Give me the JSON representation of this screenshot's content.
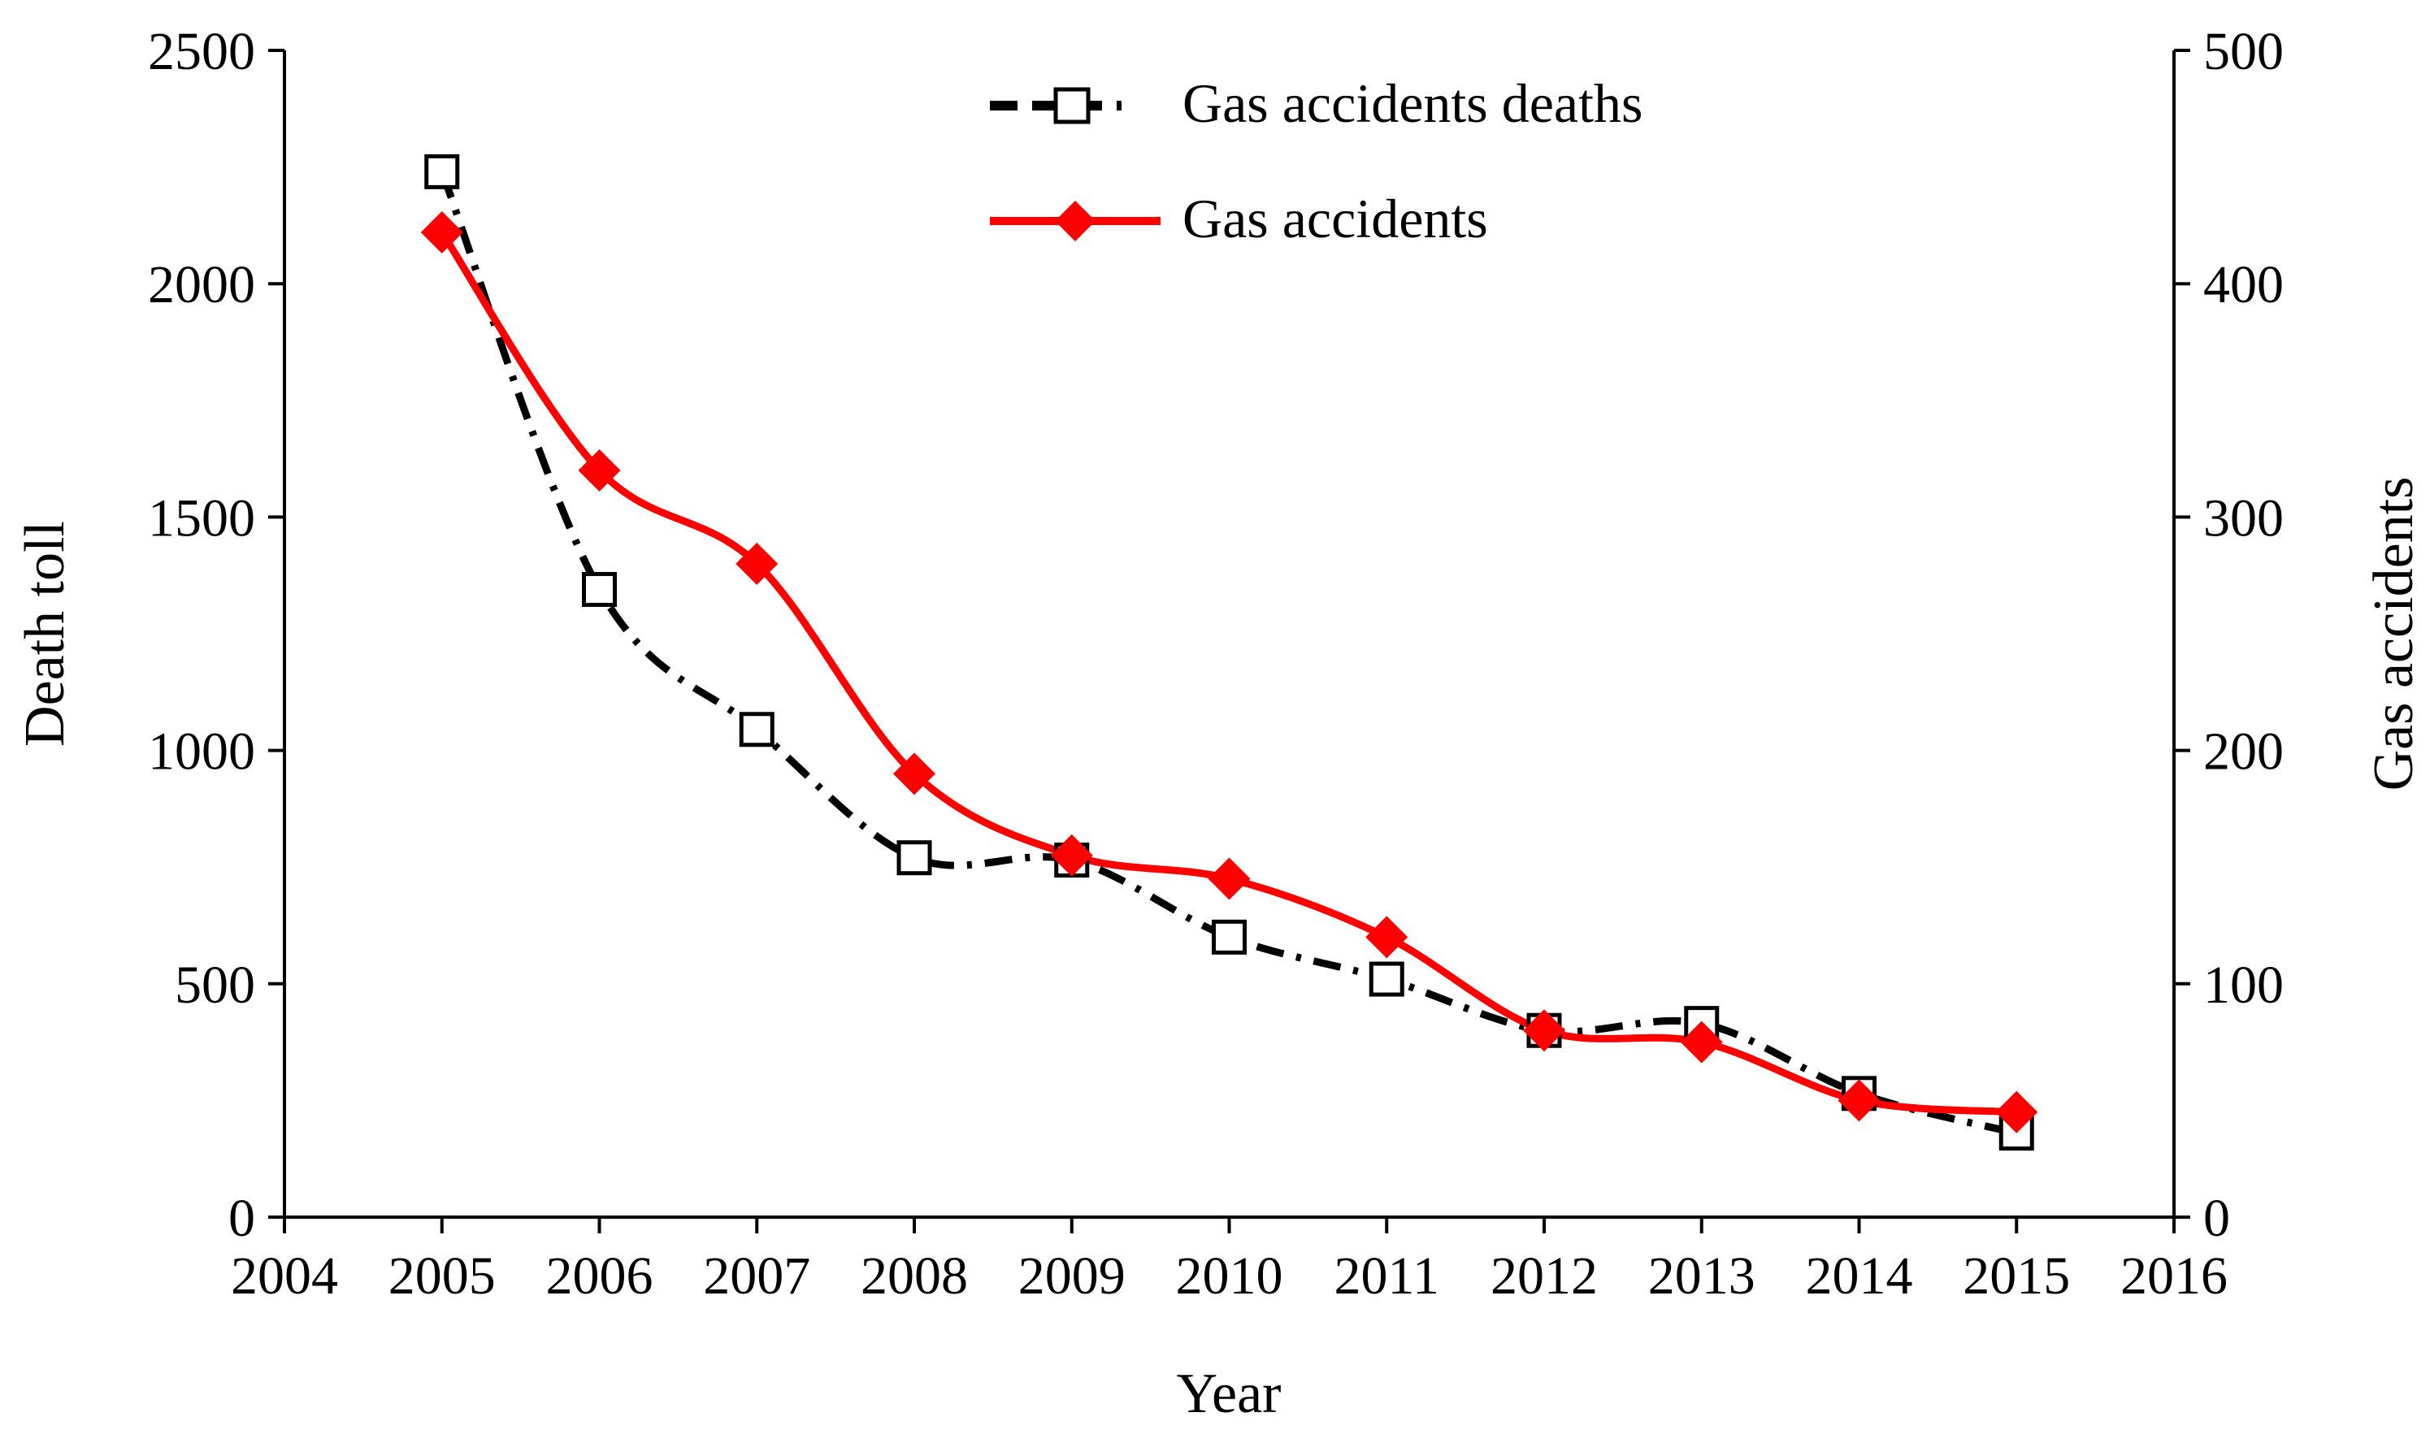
{
  "chart_data": {
    "type": "line",
    "title": "",
    "xlabel": "Year",
    "ylabel": "Death toll",
    "y2label": "Gas accidents",
    "xlim": [
      2004,
      2016
    ],
    "ylim": [
      0,
      2500
    ],
    "y2lim": [
      0,
      500
    ],
    "x_ticks": [
      "2004",
      "2005",
      "2006",
      "2007",
      "2008",
      "2009",
      "2010",
      "2011",
      "2012",
      "2013",
      "2014",
      "2015",
      "2016"
    ],
    "y_ticks": [
      "0",
      "500",
      "1000",
      "1500",
      "2000",
      "2500"
    ],
    "y2_ticks": [
      "0",
      "100",
      "200",
      "300",
      "400",
      "500"
    ],
    "grid": false,
    "legend_position": "top-center",
    "series": [
      {
        "name": "Gas accidents deaths",
        "axis": "left",
        "style": "dash-dot",
        "marker": "open-square",
        "color": "#000000",
        "x": [
          2005,
          2006,
          2007,
          2008,
          2009,
          2010,
          2011,
          2012,
          2013,
          2014,
          2015
        ],
        "values": [
          2240,
          1345,
          1045,
          770,
          765,
          600,
          510,
          400,
          415,
          265,
          180
        ]
      },
      {
        "name": "Gas accidents",
        "axis": "right",
        "style": "solid-smooth",
        "marker": "filled-diamond",
        "color": "#ff0000",
        "x": [
          2005,
          2006,
          2007,
          2008,
          2009,
          2010,
          2011,
          2012,
          2013,
          2014,
          2015
        ],
        "values": [
          422,
          320,
          280,
          190,
          155,
          145,
          120,
          80,
          75,
          50,
          45
        ]
      }
    ]
  }
}
